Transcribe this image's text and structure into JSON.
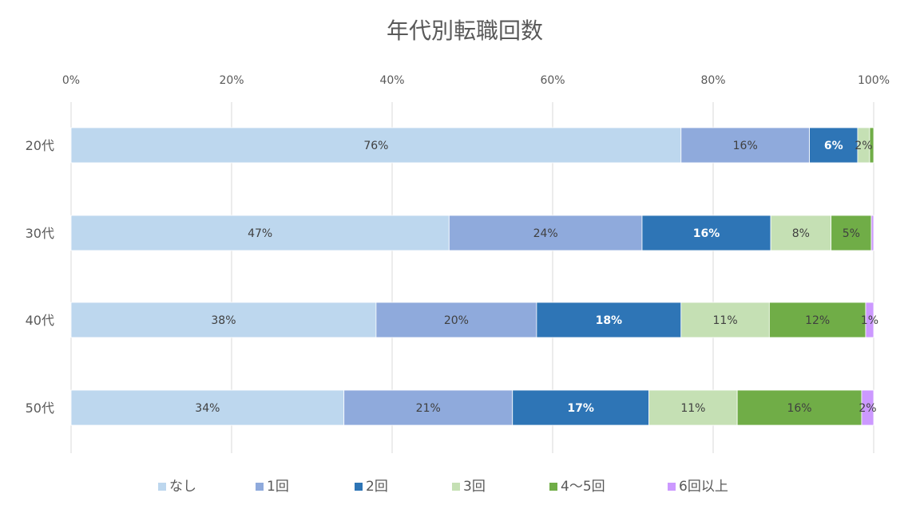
{
  "chart_data": {
    "type": "bar",
    "orientation": "horizontal",
    "stacked": "percent",
    "title": "年代別転職回数",
    "categories": [
      "20代",
      "30代",
      "40代",
      "50代"
    ],
    "x_ticks": [
      "0%",
      "20%",
      "40%",
      "60%",
      "80%",
      "100%"
    ],
    "xlim": [
      0,
      100
    ],
    "grid": true,
    "legend_position": "bottom",
    "series": [
      {
        "name": "なし",
        "color": "#bdd7ee",
        "label_color": "#404040",
        "values": [
          76,
          47,
          38,
          34
        ],
        "labels": [
          "76%",
          "47%",
          "38%",
          "34%"
        ]
      },
      {
        "name": "1回",
        "color": "#8faadc",
        "label_color": "#404040",
        "values": [
          16,
          24,
          20,
          21
        ],
        "labels": [
          "16%",
          "24%",
          "20%",
          "21%"
        ]
      },
      {
        "name": "2回",
        "color": "#2e75b6",
        "label_color": "#ffffff",
        "values": [
          6,
          16,
          18,
          17
        ],
        "labels": [
          "6%",
          "16%",
          "18%",
          "17%"
        ]
      },
      {
        "name": "3回",
        "color": "#c5e0b4",
        "label_color": "#404040",
        "values": [
          1.5,
          7.5,
          11,
          11
        ],
        "labels": [
          "2%",
          "8%",
          "11%",
          "11%"
        ]
      },
      {
        "name": "4〜5回",
        "color": "#70ad47",
        "label_color": "#404040",
        "values": [
          0.5,
          5,
          12,
          15.5
        ],
        "labels": [
          "",
          "5%",
          "12%",
          "16%"
        ]
      },
      {
        "name": "6回以上",
        "color": "#cc99ff",
        "label_color": "#404040",
        "values": [
          0,
          0.3,
          1,
          1.5
        ],
        "labels": [
          "",
          "",
          "1%",
          "2%"
        ]
      }
    ]
  }
}
